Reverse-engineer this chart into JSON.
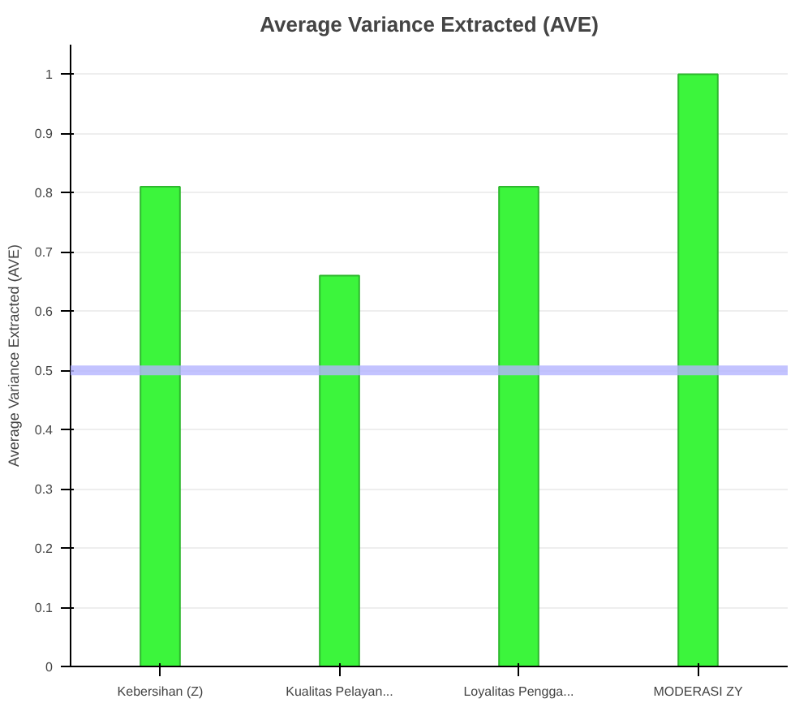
{
  "chart_data": {
    "type": "bar",
    "title": "Average Variance Extracted (AVE)",
    "ylabel": "Average Variance Extracted (AVE)",
    "categories": [
      "Kebersihan (Z)",
      "Kualitas Pelayan...",
      "Loyalitas Pengga...",
      "MODERASI ZY"
    ],
    "values": [
      0.81,
      0.66,
      0.81,
      1.0
    ],
    "color": "#3cf53c",
    "ylim": [
      0,
      1.05
    ],
    "yticks": [
      0,
      0.1,
      0.2,
      0.3,
      0.4,
      0.5,
      0.6,
      0.7,
      0.8,
      0.9,
      1
    ],
    "grid": "y",
    "ref_lines": [
      {
        "axis": "y",
        "value": 0.5,
        "label": null,
        "color": "#b4b4ff"
      }
    ]
  }
}
